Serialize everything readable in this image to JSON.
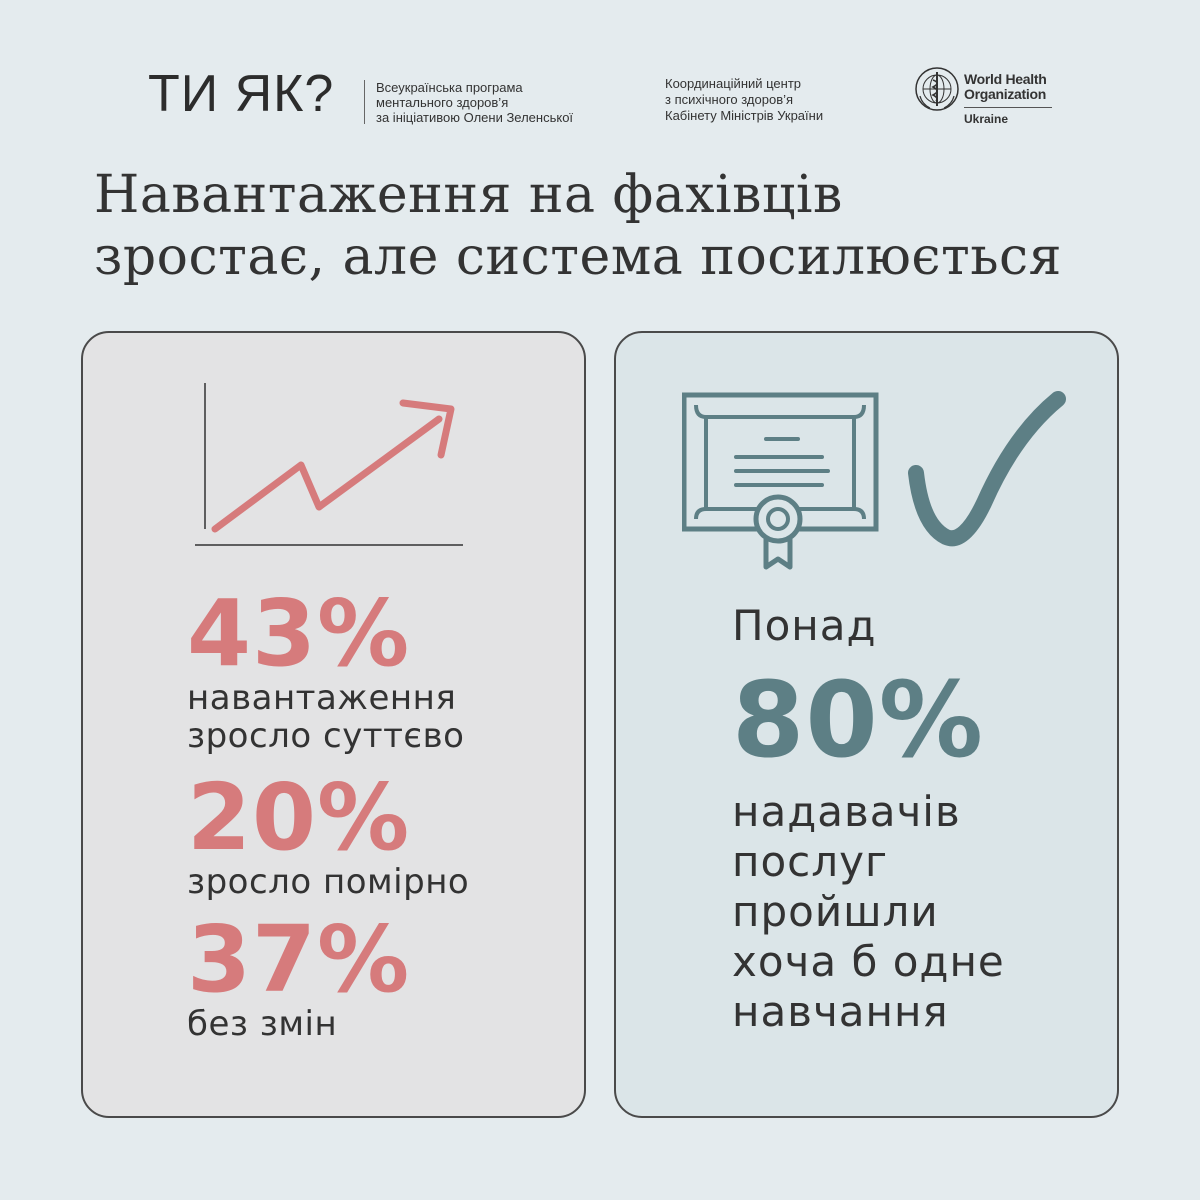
{
  "header": {
    "logo_text": "ТИ ЯК?",
    "program_lines": [
      "Всеукраїнська програма",
      "ментального здоров’я",
      "за ініціативою Олени Зеленської"
    ],
    "coordination_lines": [
      "Координаційний центр",
      "з психічного здоров’я",
      "Кабінету Міністрів України"
    ],
    "who_name_lines": [
      "World Health",
      "Organization"
    ],
    "who_country": "Ukraine"
  },
  "headline": {
    "lines": [
      "Навантаження на фахівців",
      "зростає, але система посилюється"
    ]
  },
  "left_card": {
    "icon": "growth-chart-icon",
    "stats": [
      {
        "value": "43%",
        "label_lines": [
          "навантаження",
          "зросло суттєво"
        ]
      },
      {
        "value": "20%",
        "label_lines": [
          "зросло помірно"
        ]
      },
      {
        "value": "37%",
        "label_lines": [
          "без змін"
        ]
      }
    ]
  },
  "right_card": {
    "icons": [
      "certificate-icon",
      "checkmark-icon"
    ],
    "prefix": "Понад",
    "value": "80%",
    "label_lines": [
      "надавачів",
      "послуг",
      "пройшли",
      "хоча б одне",
      "навчання"
    ]
  },
  "colors": {
    "background": "#e4ebee",
    "left_card_bg": "#e3e3e4",
    "right_card_bg": "#dbe5e8",
    "accent_red": "#d67b7c",
    "accent_teal": "#5d7f85",
    "text": "#333333"
  }
}
